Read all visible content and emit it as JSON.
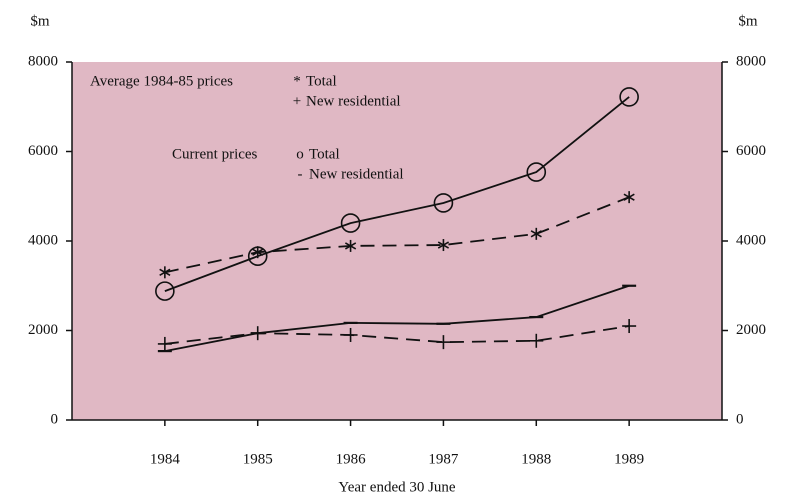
{
  "chart_data": {
    "type": "line",
    "y_label": "$m",
    "y2_label": "$m",
    "x_label": "Year ended 30 June",
    "categories": [
      "1984",
      "1985",
      "1986",
      "1987",
      "1988",
      "1989"
    ],
    "ylim": [
      0,
      8000
    ],
    "yticks": [
      0,
      2000,
      4000,
      6000,
      8000
    ],
    "y2lim": [
      0,
      8000
    ],
    "y2ticks": [
      0,
      2000,
      4000,
      6000,
      8000
    ],
    "background": "#e0b8c4",
    "legend_groups": [
      "Average 1984-85 prices",
      "Current prices"
    ],
    "series": [
      {
        "name": "Total",
        "group": 0,
        "marker": "*",
        "dash": true,
        "color": "#111111",
        "values": [
          3300,
          3750,
          3890,
          3910,
          4160,
          4980
        ]
      },
      {
        "name": "New residential",
        "group": 0,
        "marker": "+",
        "dash": true,
        "color": "#111111",
        "values": [
          1700,
          1940,
          1900,
          1740,
          1770,
          2100
        ]
      },
      {
        "name": "Total",
        "group": 1,
        "marker": "o",
        "dash": false,
        "color": "#111111",
        "values": [
          2880,
          3660,
          4400,
          4850,
          5540,
          7220
        ]
      },
      {
        "name": "New residential",
        "group": 1,
        "marker": "-",
        "dash": false,
        "color": "#111111",
        "values": [
          1540,
          1940,
          2170,
          2150,
          2300,
          3000
        ]
      }
    ]
  }
}
